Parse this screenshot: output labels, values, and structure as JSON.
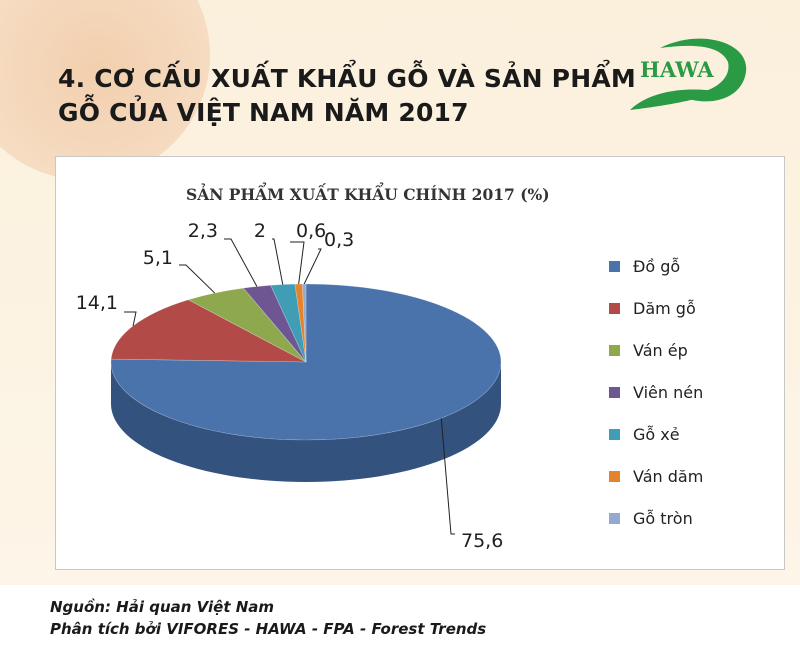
{
  "header": {
    "title_line1": "4. CƠ CẤU XUẤT KHẨU GỖ VÀ SẢN PHẨM",
    "title_line2": "GỖ CỦA VIỆT NAM NĂM 2017",
    "logo_text": "HAWA"
  },
  "chart_data": {
    "type": "pie",
    "title": "SẢN PHẨM XUẤT KHẨU CHÍNH 2017 (%)",
    "style": "3d",
    "legend_position": "right",
    "categories": [
      "Đồ gỗ",
      "Dăm gỗ",
      "Ván ép",
      "Viên nén",
      "Gỗ xẻ",
      "Ván dăm",
      "Gỗ tròn"
    ],
    "values": [
      75.6,
      14.1,
      5.1,
      2.3,
      2,
      0.6,
      0.3
    ],
    "data_labels": [
      "75,6",
      "14,1",
      "5,1",
      "2,3",
      "2",
      "0,6",
      "0,3"
    ],
    "colors": [
      "#4a72ab",
      "#b24a47",
      "#8ea84e",
      "#6e5693",
      "#3f9db5",
      "#e4832f",
      "#94a9cf"
    ],
    "side_colors": [
      "#33527d",
      "#7e3331",
      "#66793a",
      "#4e3d69",
      "#2c7183",
      "#a65e20",
      "#6b7b97"
    ]
  },
  "footer": {
    "source_line1": "Nguồn: Hải quan Việt Nam",
    "source_line2": "Phân tích bởi VIFORES - HAWA - FPA - Forest Trends"
  }
}
